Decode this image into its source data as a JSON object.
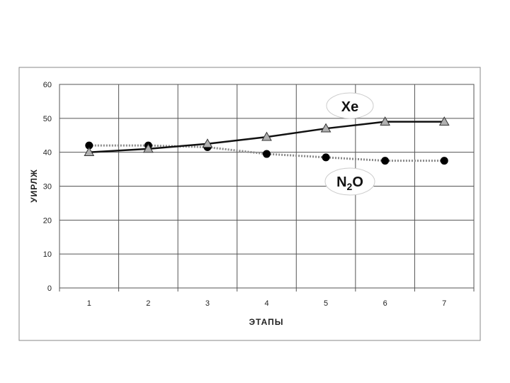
{
  "chart_data": {
    "type": "line",
    "title": "",
    "xlabel": "ЭТАПЫ",
    "ylabel": "УИРЛЖ",
    "categories": [
      "1",
      "2",
      "3",
      "4",
      "5",
      "6",
      "7"
    ],
    "ylim": [
      0,
      60
    ],
    "yticks": [
      "0",
      "10",
      "20",
      "30",
      "40",
      "50",
      "60"
    ],
    "grid": true,
    "series": [
      {
        "name": "Xe",
        "marker": "triangle",
        "line_style": "solid",
        "color": "#111111",
        "marker_color": "#b0b0b0",
        "values": [
          40,
          41,
          42.5,
          44.5,
          47,
          49,
          49
        ]
      },
      {
        "name": "N2O",
        "name_main": "N",
        "name_sub": "2",
        "name_tail": "O",
        "marker": "circle",
        "line_style": "dotted",
        "color": "#888888",
        "marker_color": "#000000",
        "values": [
          42,
          42,
          41.5,
          39.5,
          38.5,
          37.5,
          37.5
        ]
      }
    ]
  }
}
